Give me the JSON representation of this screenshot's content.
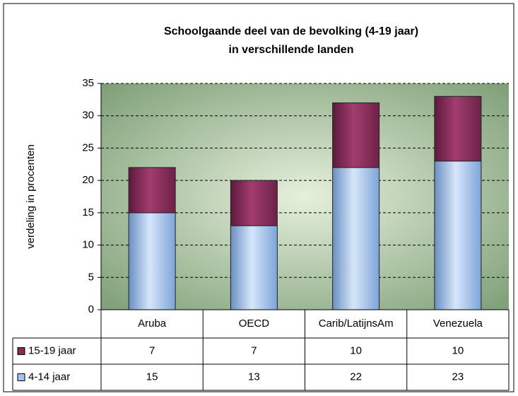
{
  "chart_data": {
    "type": "stacked_bar",
    "title": [
      "Schoolgaande deel van de bevolking (4-19 jaar)",
      "in verschillende landen"
    ],
    "y_label": "verdeling in procenten",
    "categories": [
      "Aruba",
      "OECD",
      "Carib/LatijnsAm",
      "Venezuela"
    ],
    "series": [
      {
        "name": "4-14 jaar",
        "color": "#9ec3ee",
        "values": [
          15,
          13,
          22,
          23
        ]
      },
      {
        "name": "15-19 jaar",
        "color": "#8c2b5a",
        "values": [
          7,
          7,
          10,
          10
        ]
      }
    ],
    "ylim": [
      0,
      35
    ],
    "yticks": [
      0,
      5,
      10,
      15,
      20,
      25,
      30,
      35
    ],
    "grid": true
  }
}
